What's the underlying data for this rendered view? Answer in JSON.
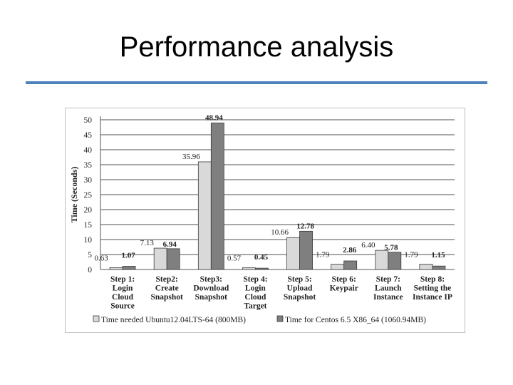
{
  "slide": {
    "title": "Performance analysis"
  },
  "colors": {
    "title_rule": "#4f81bd",
    "ubuntu_bar": "#d9d9d9",
    "centos_bar": "#7f7f7f",
    "gridline": "#8c8c8c"
  },
  "chart_data": {
    "type": "bar",
    "title": "",
    "ylabel": "Time (Seconds)",
    "xlabel": "",
    "ylim": [
      0,
      50
    ],
    "yticks": [
      0,
      5,
      10,
      15,
      20,
      25,
      30,
      35,
      40,
      45,
      50
    ],
    "grid": true,
    "legend_position": "bottom",
    "categories": [
      [
        "Step 1:",
        "Login",
        "Cloud",
        "Source"
      ],
      [
        "Step2:",
        "Create",
        "Snapshot"
      ],
      [
        "Step3:",
        "Download",
        "Snapshot"
      ],
      [
        "Step 4:",
        "Login",
        "Cloud",
        "Target"
      ],
      [
        "Step 5:",
        "Upload",
        "Snapshot"
      ],
      [
        "Step 6:",
        "Keypair"
      ],
      [
        "Step 7:",
        "Launch",
        "Instance"
      ],
      [
        "Step 8:",
        "Setting the",
        "Instance IP"
      ]
    ],
    "series": [
      {
        "name": "Time needed Ubuntu12.04LTS-64 (800MB)",
        "values": [
          0.63,
          7.13,
          35.96,
          0.57,
          10.66,
          1.79,
          6.4,
          1.79
        ],
        "labels": [
          "0.63",
          "7.13",
          "35.96",
          "0.57",
          "10.66",
          "1.79",
          "6.40",
          "1.79"
        ]
      },
      {
        "name": "Time for Centos 6.5 X86_64 (1060.94MB)",
        "values": [
          1.07,
          6.94,
          48.94,
          0.45,
          12.78,
          2.86,
          5.78,
          1.15
        ],
        "labels": [
          "1.07",
          "6.94",
          "48.94",
          "0.45",
          "12.78",
          "2.86",
          "5.78",
          "1.15"
        ]
      }
    ]
  }
}
